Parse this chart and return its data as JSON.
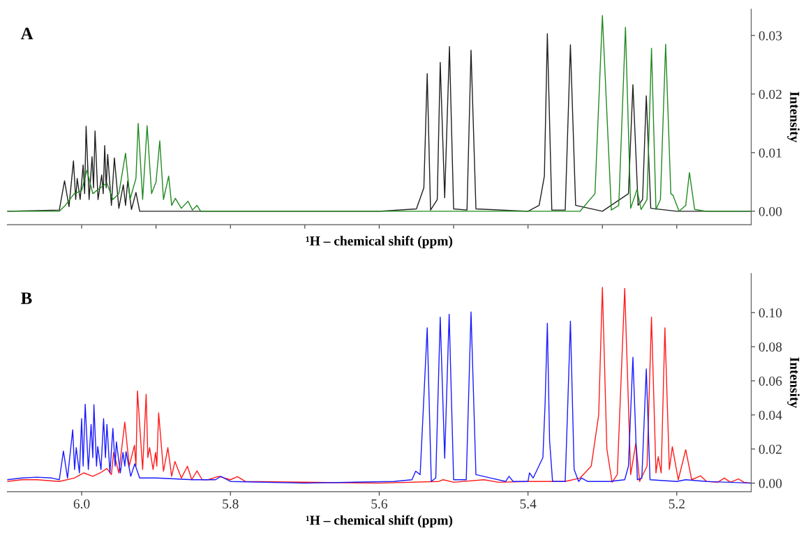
{
  "chart_data": [
    {
      "type": "line",
      "annotations": [
        "A"
      ],
      "xlabel": "¹H – chemical shift (ppm)",
      "ylabel": "Intensity",
      "xlim": [
        6.1,
        5.1
      ],
      "ylim": [
        -0.0023,
        0.0345
      ],
      "xticks": [
        {
          "value": 6.0,
          "label": null
        },
        {
          "value": 5.9,
          "label": null
        },
        {
          "value": 5.8,
          "label": null
        },
        {
          "value": 5.7,
          "label": null
        },
        {
          "value": 5.6,
          "label": null
        },
        {
          "value": 5.5,
          "label": null
        },
        {
          "value": 5.4,
          "label": null
        },
        {
          "value": 5.3,
          "label": null
        },
        {
          "value": 5.2,
          "label": null
        }
      ],
      "yticks": [
        {
          "value": 0,
          "label": "0.00"
        },
        {
          "value": 0.01,
          "label": "0.01"
        },
        {
          "value": 0.02,
          "label": "0.02"
        },
        {
          "value": 0.03,
          "label": "0.03"
        }
      ],
      "tick_labels": "y",
      "grid": false,
      "line_style": "solid",
      "marker": "none",
      "series": [
        {
          "color": "#1e1e1e",
          "x": [
            6.1,
            6.03,
            6.023,
            6.017,
            6.011,
            6.008,
            6.006,
            6.002,
            5.998,
            5.996,
            5.994,
            5.99,
            5.986,
            5.984,
            5.982,
            5.978,
            5.973,
            5.971,
            5.969,
            5.967,
            5.965,
            5.96,
            5.956,
            5.95,
            5.944,
            5.941,
            5.938,
            5.933,
            5.927,
            5.922,
            5.6,
            5.55,
            5.54,
            5.5355,
            5.531,
            5.522,
            5.518,
            5.512,
            5.5056,
            5.5,
            5.482,
            5.4766,
            5.47,
            5.4,
            5.385,
            5.378,
            5.374,
            5.368,
            5.35,
            5.343,
            5.336,
            5.3,
            5.265,
            5.259,
            5.252,
            5.246,
            5.241,
            5.235,
            5.2,
            5.1
          ],
          "values": [
            0,
            0.0002,
            0.0052,
            0.0008,
            0.0086,
            0.002,
            0.0056,
            0.002,
            0.0079,
            0.003,
            0.0145,
            0.002,
            0.0093,
            0.004,
            0.0137,
            0.002,
            0.0062,
            0.003,
            0.0112,
            0.004,
            0.0097,
            0.001,
            0.0091,
            0.0005,
            0.0045,
            0.001,
            0.0052,
            0.0003,
            0.0032,
            0,
            0,
            0.0004,
            0.004,
            0.0235,
            0.0002,
            0.002,
            0.0254,
            0.0023,
            0.0281,
            0.0004,
            0.0002,
            0.0275,
            0.0004,
            0,
            0.001,
            0.006,
            0.0303,
            0.0002,
            0.0002,
            0.0284,
            0.001,
            0,
            0.003,
            0.0216,
            0.001,
            0.002,
            0.0197,
            0.0005,
            0,
            0
          ]
        },
        {
          "color": "#1f8a1f",
          "x": [
            6.1,
            6.03,
            6.022,
            6.01,
            6.0,
            5.993,
            5.985,
            5.975,
            5.966,
            5.958,
            5.95,
            5.941,
            5.935,
            5.927,
            5.924,
            5.918,
            5.912,
            5.906,
            5.9,
            5.895,
            5.89,
            5.883,
            5.879,
            5.874,
            5.866,
            5.857,
            5.851,
            5.845,
            5.84,
            5.33,
            5.31,
            5.3,
            5.288,
            5.278,
            5.269,
            5.262,
            5.2535,
            5.248,
            5.24,
            5.234,
            5.228,
            5.222,
            5.215,
            5.208,
            5.205,
            5.197,
            5.188,
            5.183,
            5.176,
            5.16,
            5.1
          ],
          "values": [
            0,
            0,
            0.001,
            0.003,
            0.0035,
            0.007,
            0.003,
            0.004,
            0.0048,
            0.002,
            0.003,
            0.0099,
            0.002,
            0.0056,
            0.015,
            0.002,
            0.0146,
            0.003,
            0.005,
            0.012,
            0.002,
            0.006,
            0.001,
            0.0022,
            0.0005,
            0.0017,
            0.0002,
            0.001,
            0,
            0,
            0.003,
            0.0334,
            0.0002,
            0.001,
            0.0314,
            0.0005,
            0.0037,
            0.0003,
            0.002,
            0.0278,
            0.0003,
            0.002,
            0.0285,
            0.003,
            0.0027,
            0,
            0.001,
            0.0066,
            0.0003,
            0,
            0
          ]
        }
      ]
    },
    {
      "type": "line",
      "annotations": [
        "B"
      ],
      "xlabel": "¹H – chemical shift (ppm)",
      "ylabel": "Intensity",
      "xlim": [
        6.1,
        5.1
      ],
      "ylim": [
        -0.005,
        0.123
      ],
      "xticks": [
        {
          "value": 6.0,
          "label": "6.0"
        },
        {
          "value": 5.8,
          "label": "5.8"
        },
        {
          "value": 5.6,
          "label": "5.6"
        },
        {
          "value": 5.4,
          "label": "5.4"
        },
        {
          "value": 5.2,
          "label": "5.2"
        }
      ],
      "yticks": [
        {
          "value": 0,
          "label": "0.00"
        },
        {
          "value": 0.02,
          "label": "0.02"
        },
        {
          "value": 0.04,
          "label": "0.04"
        },
        {
          "value": 0.06,
          "label": "0.06"
        },
        {
          "value": 0.08,
          "label": "0.08"
        },
        {
          "value": 0.1,
          "label": "0.10"
        }
      ],
      "grid": false,
      "line_style": "solid",
      "marker": "none",
      "series": [
        {
          "color": "#ff1a1a",
          "x": [
            6.1,
            6.08,
            6.06,
            6.03,
            6.01,
            5.997,
            5.985,
            5.975,
            5.966,
            5.96,
            5.957,
            5.95,
            5.942,
            5.936,
            5.929,
            5.927,
            5.925,
            5.918,
            5.9133,
            5.911,
            5.9086,
            5.904,
            5.9006,
            5.899,
            5.8965,
            5.89,
            5.8841,
            5.879,
            5.8746,
            5.866,
            5.8578,
            5.852,
            5.845,
            5.838,
            5.83,
            5.816,
            5.8,
            5.7905,
            5.78,
            5.6,
            5.52,
            5.514,
            5.5,
            5.459,
            5.44,
            5.4,
            5.35,
            5.33,
            5.315,
            5.305,
            5.3,
            5.294,
            5.287,
            5.28,
            5.27,
            5.262,
            5.255,
            5.25,
            5.24,
            5.234,
            5.228,
            5.225,
            5.221,
            5.216,
            5.21,
            5.206,
            5.198,
            5.188,
            5.18,
            5.168,
            5.16,
            5.145,
            5.136,
            5.128,
            5.117,
            5.11,
            5.1
          ],
          "values": [
            0.001,
            0.002,
            0.002,
            0.001,
            0.003,
            0.006,
            0.004,
            0.006,
            0.0086,
            0.005,
            0.018,
            0.006,
            0.0358,
            0.01,
            0.0222,
            0.01,
            0.0541,
            0.008,
            0.0521,
            0.015,
            0.0208,
            0.008,
            0.018,
            0.01,
            0.0412,
            0.007,
            0.0208,
            0.004,
            0.0127,
            0.003,
            0.0099,
            0.002,
            0.0072,
            0.002,
            0.002,
            0.004,
            0.002,
            0.0038,
            0.001,
            0,
            0.001,
            0.002,
            0.0005,
            0.002,
            0.0005,
            0.001,
            0.001,
            0.003,
            0.01,
            0.04,
            0.1148,
            0.02,
            0.0005,
            0.005,
            0.1142,
            0.005,
            0.0235,
            0.001,
            0.01,
            0.0973,
            0.006,
            0.0155,
            0.006,
            0.0911,
            0.008,
            0.0214,
            0.002,
            0.0196,
            0.002,
            0.0043,
            0.001,
            0.0005,
            0.003,
            0.0005,
            0.0025,
            0.0005,
            0
          ]
        },
        {
          "color": "#1a1aff",
          "x": [
            6.1,
            6.08,
            6.06,
            6.04,
            6.03,
            6.0245,
            6.019,
            6.012,
            6.0095,
            6.0073,
            6.003,
            6.0,
            5.998,
            5.9952,
            5.991,
            5.9873,
            5.985,
            5.9835,
            5.98,
            5.9784,
            5.974,
            5.9705,
            5.968,
            5.966,
            5.962,
            5.958,
            5.955,
            5.9533,
            5.948,
            5.9444,
            5.942,
            5.9403,
            5.934,
            5.9286,
            5.922,
            5.9,
            5.85,
            5.82,
            5.813,
            5.8,
            5.7,
            5.58,
            5.556,
            5.551,
            5.545,
            5.5355,
            5.53,
            5.524,
            5.518,
            5.512,
            5.506,
            5.5,
            5.483,
            5.4766,
            5.47,
            5.45,
            5.43,
            5.4255,
            5.42,
            5.4,
            5.398,
            5.393,
            5.38,
            5.377,
            5.374,
            5.371,
            5.367,
            5.35,
            5.347,
            5.343,
            5.338,
            5.332,
            5.328,
            5.32,
            5.29,
            5.27,
            5.265,
            5.259,
            5.253,
            5.247,
            5.241,
            5.236,
            5.2,
            5.188,
            5.16,
            5.1
          ],
          "values": [
            0.002,
            0.003,
            0.0035,
            0.003,
            0.002,
            0.0188,
            0.003,
            0.0313,
            0.008,
            0.0208,
            0.006,
            0.0378,
            0.01,
            0.0463,
            0.008,
            0.0344,
            0.015,
            0.046,
            0.01,
            0.0215,
            0.008,
            0.0378,
            0.015,
            0.0344,
            0.006,
            0.0321,
            0.01,
            0.0242,
            0.006,
            0.018,
            0.01,
            0.0185,
            0.004,
            0.0113,
            0.003,
            0.003,
            0.002,
            0.002,
            0.004,
            0.001,
            0,
            0.001,
            0.002,
            0.007,
            0.005,
            0.0911,
            0.001,
            0.003,
            0.0973,
            0.0146,
            0.0991,
            0.002,
            0.002,
            0.1004,
            0.005,
            0.003,
            0.001,
            0.004,
            0.001,
            0.001,
            0.006,
            0.003,
            0.015,
            0.047,
            0.0938,
            0.025,
            0.001,
            0.001,
            0.04,
            0.095,
            0.008,
            0.001,
            0.003,
            0.001,
            0.001,
            0.002,
            0.01,
            0.0738,
            0.002,
            0.003,
            0.067,
            0.002,
            0.001,
            0.002,
            0.001,
            0
          ]
        }
      ]
    }
  ]
}
